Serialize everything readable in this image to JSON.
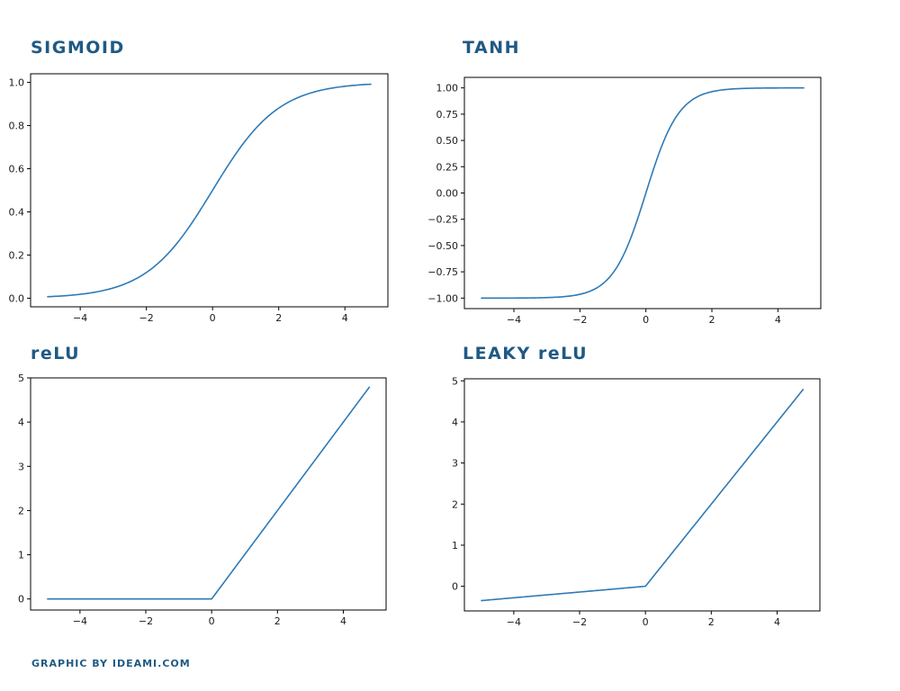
{
  "credit": "GRAPHIC BY IDEAMI.COM",
  "colors": {
    "title": "#1f5a84",
    "line": "#2e7ab6",
    "axes": "#000000"
  },
  "chart_data": [
    {
      "type": "line",
      "title": "SIGMOID",
      "function": "sigmoid",
      "x_range": [
        -5,
        4.8
      ],
      "x": [
        -5,
        -4,
        -3,
        -2,
        -1,
        0,
        1,
        2,
        3,
        4,
        4.8
      ],
      "y": [
        0.007,
        0.018,
        0.047,
        0.119,
        0.269,
        0.5,
        0.731,
        0.881,
        0.953,
        0.982,
        0.992
      ],
      "xlim": [
        -5.5,
        5.3
      ],
      "ylim": [
        -0.04,
        1.04
      ],
      "xticks": [
        -4,
        -2,
        0,
        2,
        4
      ],
      "xtick_labels": [
        "−4",
        "−2",
        "0",
        "2",
        "4"
      ],
      "yticks": [
        0.0,
        0.2,
        0.4,
        0.6,
        0.8,
        1.0
      ],
      "ytick_labels": [
        "0.0",
        "0.2",
        "0.4",
        "0.6",
        "0.8",
        "1.0"
      ],
      "grid": false
    },
    {
      "type": "line",
      "title": "TANH",
      "function": "tanh",
      "x_range": [
        -5,
        4.8
      ],
      "x": [
        -5,
        -4,
        -3,
        -2,
        -1,
        0,
        1,
        2,
        3,
        4,
        4.8
      ],
      "y": [
        -1.0,
        -0.999,
        -0.995,
        -0.964,
        -0.762,
        0.0,
        0.762,
        0.964,
        0.995,
        0.999,
        1.0
      ],
      "xlim": [
        -5.5,
        5.3
      ],
      "ylim": [
        -1.1,
        1.1
      ],
      "xticks": [
        -4,
        -2,
        0,
        2,
        4
      ],
      "xtick_labels": [
        "−4",
        "−2",
        "0",
        "2",
        "4"
      ],
      "yticks": [
        -1.0,
        -0.75,
        -0.5,
        -0.25,
        0.0,
        0.25,
        0.5,
        0.75,
        1.0
      ],
      "ytick_labels": [
        "−1.00",
        "−0.75",
        "−0.50",
        "−0.25",
        "0.00",
        "0.25",
        "0.50",
        "0.75",
        "1.00"
      ],
      "grid": false
    },
    {
      "type": "line",
      "title": "reLU",
      "function": "relu",
      "x_range": [
        -5,
        4.8
      ],
      "x": [
        -5,
        0,
        4.8
      ],
      "y": [
        0,
        0,
        4.8
      ],
      "xlim": [
        -5.5,
        5.3
      ],
      "ylim": [
        -0.25,
        5.0
      ],
      "xticks": [
        -4,
        -2,
        0,
        2,
        4
      ],
      "xtick_labels": [
        "−4",
        "−2",
        "0",
        "2",
        "4"
      ],
      "yticks": [
        0,
        1,
        2,
        3,
        4,
        5
      ],
      "ytick_labels": [
        "0",
        "1",
        "2",
        "3",
        "4",
        "5"
      ],
      "grid": false
    },
    {
      "type": "line",
      "title": "LEAKY reLU",
      "function": "leaky_relu",
      "x_range": [
        -5,
        4.8
      ],
      "x": [
        -5,
        0,
        4.8
      ],
      "y": [
        -0.35,
        0,
        4.8
      ],
      "xlim": [
        -5.5,
        5.3
      ],
      "ylim": [
        -0.6,
        5.05
      ],
      "xticks": [
        -4,
        -2,
        0,
        2,
        4
      ],
      "xtick_labels": [
        "−4",
        "−2",
        "0",
        "2",
        "4"
      ],
      "yticks": [
        0,
        1,
        2,
        3,
        4,
        5
      ],
      "ytick_labels": [
        "0",
        "1",
        "2",
        "3",
        "4",
        "5"
      ],
      "grid": false
    }
  ]
}
